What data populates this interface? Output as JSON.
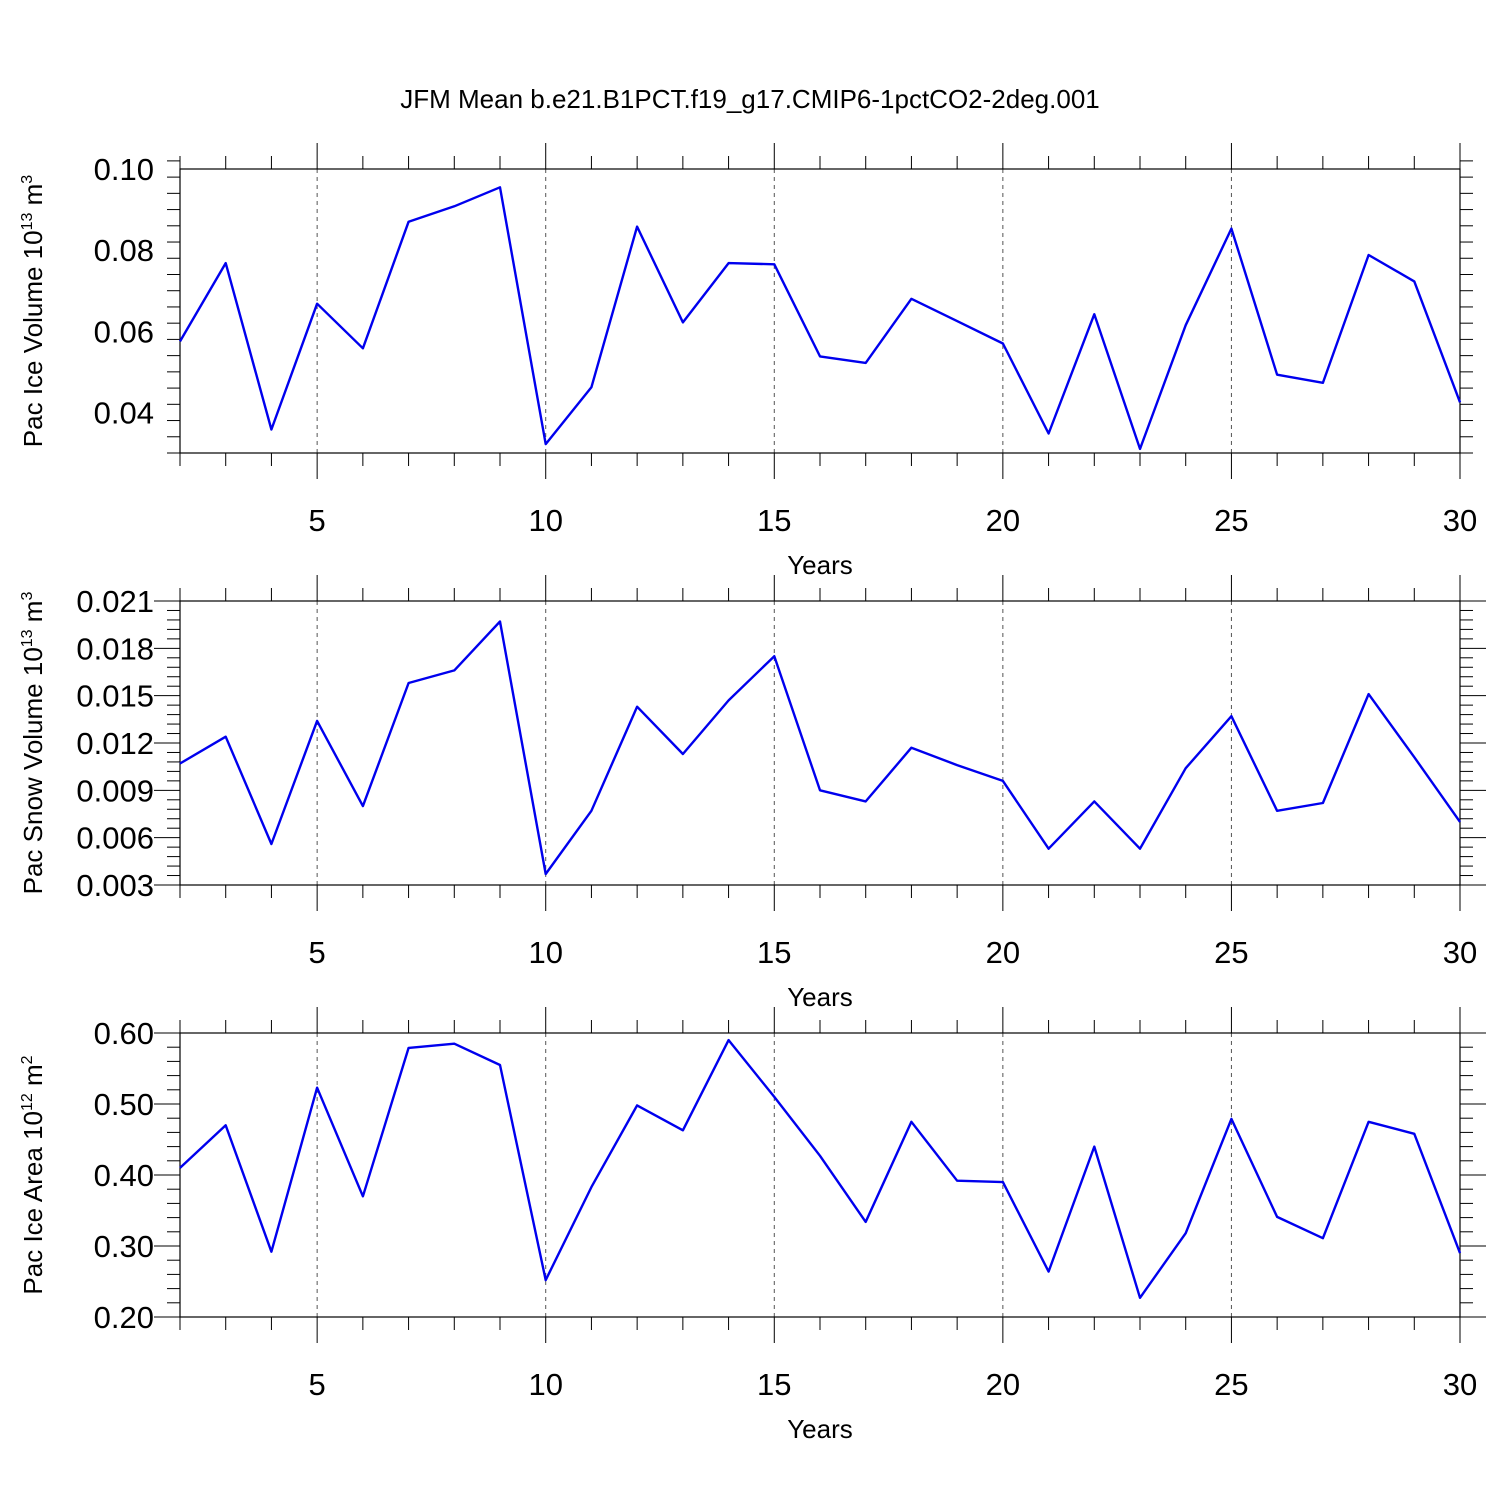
{
  "title": "JFM Mean b.e21.B1PCT.f19_g17.CMIP6-1pctCO2-2deg.001",
  "chart_data": [
    {
      "type": "line",
      "ylabel": "Pac Ice Volume 10",
      "ylabel_exponent": "13",
      "ylabel_unit": " m",
      "ylabel_unit_exponent": "3",
      "xlabel": "Years",
      "xlim": [
        2,
        30
      ],
      "ylim": [
        0.03,
        0.1
      ],
      "x_ticks": [
        5,
        10,
        15,
        20,
        25,
        30
      ],
      "x_tick_labels": [
        "5",
        "10",
        "15",
        "20",
        "25",
        "30"
      ],
      "y_ticks": [
        0.04,
        0.06,
        0.08,
        0.1
      ],
      "y_tick_labels": [
        "0.04",
        "0.06",
        "0.08",
        "0.10"
      ],
      "grid": "dashed vertical lines at major x ticks",
      "line_color": "#0000ee",
      "x": [
        2,
        3,
        4,
        5,
        6,
        7,
        8,
        9,
        10,
        11,
        12,
        13,
        14,
        15,
        16,
        17,
        18,
        19,
        20,
        21,
        22,
        23,
        24,
        25,
        26,
        27,
        28,
        29,
        30
      ],
      "y": [
        0.0575,
        0.0768,
        0.0358,
        0.0668,
        0.0558,
        0.087,
        0.0908,
        0.0955,
        0.0322,
        0.0462,
        0.0858,
        0.0622,
        0.0768,
        0.0765,
        0.0538,
        0.0522,
        0.068,
        0.0625,
        0.057,
        0.0348,
        0.0642,
        0.031,
        0.0615,
        0.0853,
        0.0493,
        0.0473,
        0.0788,
        0.0723,
        0.0425
      ]
    },
    {
      "type": "line",
      "ylabel": "Pac Snow Volume 10",
      "ylabel_exponent": "13",
      "ylabel_unit": " m",
      "ylabel_unit_exponent": "3",
      "xlabel": "Years",
      "xlim": [
        2,
        30
      ],
      "ylim": [
        0.003,
        0.021
      ],
      "x_ticks": [
        5,
        10,
        15,
        20,
        25,
        30
      ],
      "x_tick_labels": [
        "5",
        "10",
        "15",
        "20",
        "25",
        "30"
      ],
      "y_ticks": [
        0.003,
        0.006,
        0.009,
        0.012,
        0.015,
        0.018,
        0.021
      ],
      "y_tick_labels": [
        "0.003",
        "0.006",
        "0.009",
        "0.012",
        "0.015",
        "0.018",
        "0.021"
      ],
      "grid": "dashed vertical lines at major x ticks",
      "line_color": "#0000ee",
      "x": [
        2,
        3,
        4,
        5,
        6,
        7,
        8,
        9,
        10,
        11,
        12,
        13,
        14,
        15,
        16,
        17,
        18,
        19,
        20,
        21,
        22,
        23,
        24,
        25,
        26,
        27,
        28,
        29,
        30
      ],
      "y": [
        0.0107,
        0.0124,
        0.0056,
        0.0134,
        0.008,
        0.0158,
        0.0166,
        0.0197,
        0.0037,
        0.0077,
        0.0143,
        0.0113,
        0.0147,
        0.0175,
        0.009,
        0.0083,
        0.0117,
        0.0106,
        0.0096,
        0.0053,
        0.0083,
        0.0053,
        0.0104,
        0.0137,
        0.0077,
        0.0082,
        0.0151,
        0.0111,
        0.007
      ]
    },
    {
      "type": "line",
      "ylabel": "Pac Ice Area 10",
      "ylabel_exponent": "12",
      "ylabel_unit": " m",
      "ylabel_unit_exponent": "2",
      "xlabel": "Years",
      "xlim": [
        2,
        30
      ],
      "ylim": [
        0.2,
        0.6
      ],
      "x_ticks": [
        5,
        10,
        15,
        20,
        25,
        30
      ],
      "x_tick_labels": [
        "5",
        "10",
        "15",
        "20",
        "25",
        "30"
      ],
      "y_ticks": [
        0.2,
        0.3,
        0.4,
        0.5,
        0.6
      ],
      "y_tick_labels": [
        "0.20",
        "0.30",
        "0.40",
        "0.50",
        "0.60"
      ],
      "grid": "dashed vertical lines at major x ticks",
      "line_color": "#0000ee",
      "x": [
        2,
        3,
        4,
        5,
        6,
        7,
        8,
        9,
        10,
        11,
        12,
        13,
        14,
        15,
        16,
        17,
        18,
        19,
        20,
        21,
        22,
        23,
        24,
        25,
        26,
        27,
        28,
        29,
        30
      ],
      "y": [
        0.41,
        0.47,
        0.292,
        0.523,
        0.37,
        0.579,
        0.585,
        0.555,
        0.252,
        0.383,
        0.498,
        0.463,
        0.59,
        0.51,
        0.427,
        0.334,
        0.475,
        0.392,
        0.39,
        0.264,
        0.44,
        0.227,
        0.318,
        0.479,
        0.341,
        0.311,
        0.475,
        0.458,
        0.29
      ]
    }
  ]
}
